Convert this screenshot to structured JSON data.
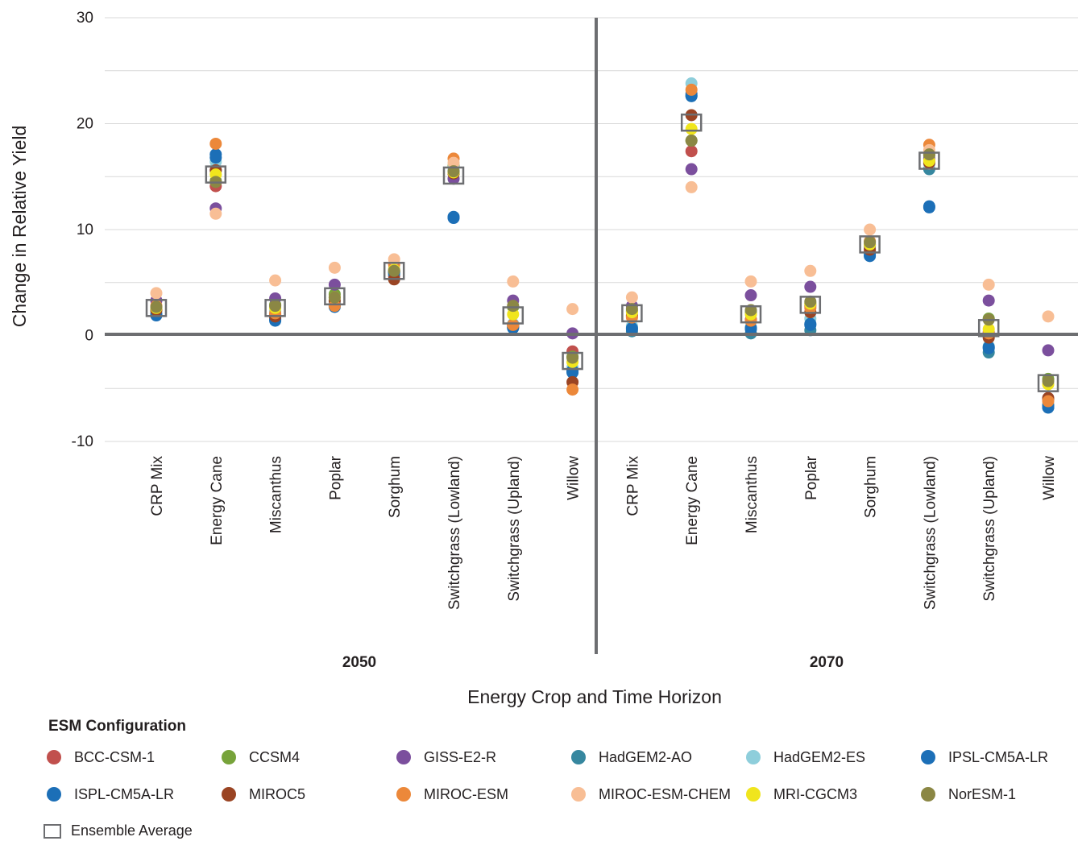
{
  "chart_data": {
    "type": "scatter",
    "xlabel": "Energy Crop and Time Horizon",
    "ylabel": "Change in Relative Yield",
    "ylim": [
      -10,
      30
    ],
    "yticks": [
      30,
      20,
      10,
      0,
      -10
    ],
    "grid": true,
    "legend_placement": "bottom",
    "groups": [
      {
        "label": "2050",
        "categories": [
          "CRP Mix",
          "Energy Cane",
          "Miscanthus",
          "Poplar",
          "Sorghum",
          "Switchgrass (Lowland)",
          "Switchgrass (Upland)",
          "Willow"
        ]
      },
      {
        "label": "2070",
        "categories": [
          "CRP Mix",
          "Energy Cane",
          "Miscanthus",
          "Poplar",
          "Sorghum",
          "Switchgrass (Lowland)",
          "Switchgrass (Upland)",
          "Willow"
        ]
      }
    ],
    "legend_title": "ESM Configuration",
    "ensemble_label": "Ensemble Average",
    "series": [
      {
        "name": "BCC-CSM-1",
        "color": "#c1504d",
        "values": [
          2.6,
          14.1,
          2.0,
          3.0,
          5.6,
          15.3,
          1.0,
          -1.5,
          1.9,
          17.4,
          1.5,
          2.8,
          8.4,
          16.4,
          0.3,
          -6.0
        ]
      },
      {
        "name": "CCSM4",
        "color": "#77a33a",
        "values": [
          2.5,
          14.6,
          2.9,
          3.9,
          6.0,
          16.0,
          2.7,
          -2.0,
          2.3,
          18.4,
          2.2,
          3.0,
          8.5,
          17.0,
          1.6,
          -4.1
        ]
      },
      {
        "name": "GISS-E2-R",
        "color": "#7b4f9d",
        "values": [
          3.3,
          12.0,
          3.5,
          4.8,
          6.1,
          14.8,
          3.3,
          0.2,
          2.8,
          15.7,
          3.8,
          4.6,
          8.6,
          16.7,
          3.3,
          -1.4
        ]
      },
      {
        "name": "HadGEM2-AO",
        "color": "#36879f",
        "values": [
          2.0,
          15.6,
          1.6,
          2.9,
          5.8,
          15.5,
          0.8,
          -3.4,
          0.4,
          22.6,
          0.2,
          0.5,
          7.8,
          15.7,
          -1.6,
          -6.8
        ]
      },
      {
        "name": "HadGEM2-ES",
        "color": "#8ecedb",
        "values": [
          2.2,
          16.4,
          2.3,
          3.2,
          6.3,
          15.8,
          1.1,
          -3.0,
          0.9,
          23.8,
          0.8,
          1.6,
          8.2,
          16.2,
          -1.0,
          -6.5
        ]
      },
      {
        "name": "IPSL-CM5A-LR",
        "color": "#1c6fb7",
        "values": [
          1.9,
          17.1,
          1.4,
          2.7,
          6.0,
          11.1,
          0.7,
          -3.5,
          0.6,
          22.6,
          0.6,
          1.0,
          7.5,
          12.1,
          -1.2,
          -6.8
        ]
      },
      {
        "name": "ISPL-CM5A-LR",
        "color": "#1c6fb7",
        "values": [
          2.0,
          16.8,
          1.5,
          2.8,
          5.9,
          11.2,
          0.8,
          -3.3,
          0.7,
          22.8,
          0.7,
          1.1,
          7.6,
          12.2,
          -1.1,
          -6.6
        ]
      },
      {
        "name": "MIROC5",
        "color": "#9a4423",
        "values": [
          2.4,
          15.6,
          1.8,
          3.3,
          5.3,
          15.3,
          1.0,
          -4.4,
          1.8,
          20.8,
          1.4,
          2.2,
          8.1,
          16.3,
          -0.2,
          -5.9
        ]
      },
      {
        "name": "MIROC-ESM",
        "color": "#ec883a",
        "values": [
          2.8,
          18.1,
          2.1,
          2.8,
          6.7,
          16.7,
          1.0,
          -5.1,
          1.7,
          23.2,
          1.4,
          2.6,
          8.9,
          18.0,
          0.2,
          -6.2
        ]
      },
      {
        "name": "MIROC-ESM-CHEM",
        "color": "#f8be95",
        "values": [
          4.0,
          11.5,
          5.2,
          6.4,
          7.2,
          16.3,
          5.1,
          2.5,
          3.6,
          14.0,
          5.1,
          6.1,
          10.0,
          17.5,
          4.8,
          1.8
        ]
      },
      {
        "name": "MRI-CGCM3",
        "color": "#f0e51d",
        "values": [
          2.6,
          15.2,
          2.6,
          3.6,
          6.2,
          15.4,
          2.0,
          -2.5,
          2.2,
          19.5,
          2.0,
          3.0,
          8.6,
          16.5,
          0.6,
          -4.6
        ]
      },
      {
        "name": "NorESM-1",
        "color": "#8b8744",
        "values": [
          2.7,
          14.5,
          2.8,
          3.6,
          6.1,
          15.5,
          2.8,
          -2.1,
          2.5,
          18.4,
          2.4,
          3.2,
          8.8,
          17.1,
          1.5,
          -4.3
        ]
      }
    ],
    "ensemble_average": [
      2.6,
      15.2,
      2.6,
      3.7,
      6.1,
      15.1,
      1.9,
      -2.4,
      2.1,
      20.1,
      2.0,
      2.9,
      8.6,
      16.5,
      0.7,
      -4.5
    ]
  }
}
